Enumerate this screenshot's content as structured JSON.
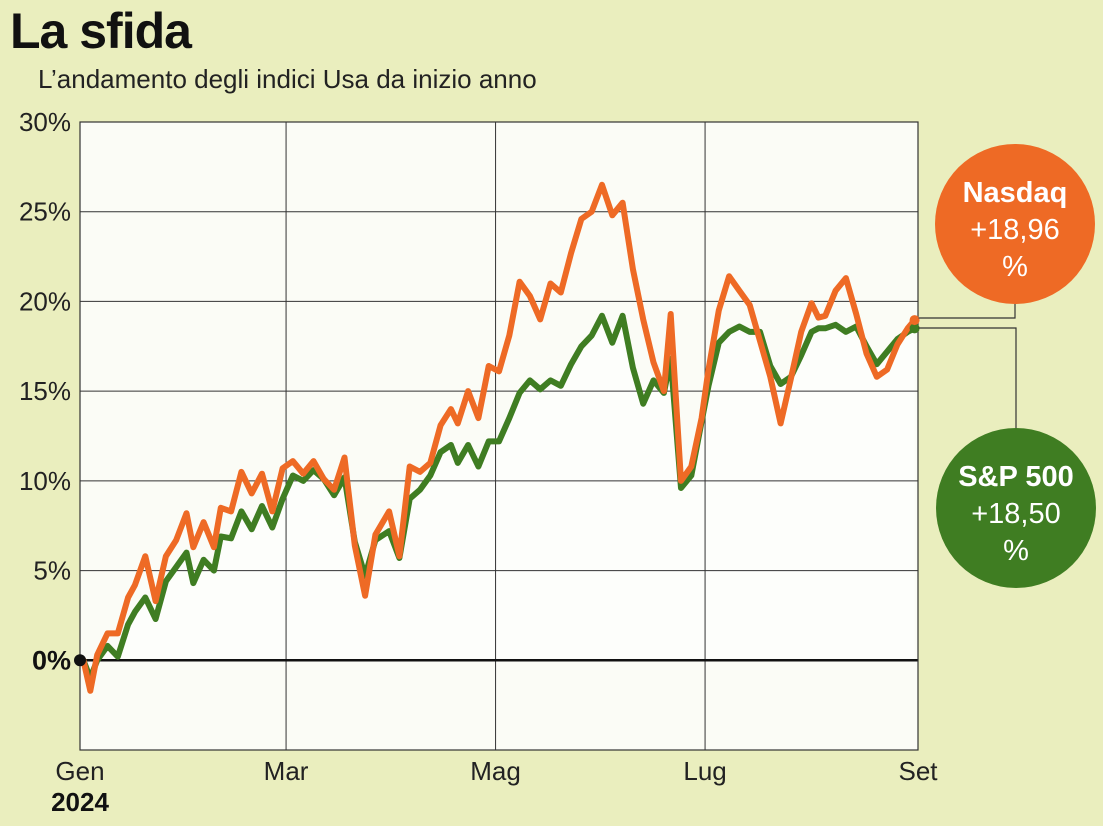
{
  "title": "La sfida",
  "subtitle": "L’andamento degli indici Usa da inizio anno",
  "colors": {
    "nasdaq": "#ee6a25",
    "sp500": "#3f7d22",
    "background": "#eaeebe",
    "plot_area": "#fbfcf6"
  },
  "chart_data": {
    "type": "line",
    "x_tick_labels": [
      "Gen",
      "Mar",
      "Mag",
      "Lug",
      "Set"
    ],
    "x_year_label": "2024",
    "y_tick_labels": [
      "30%",
      "25%",
      "20%",
      "15%",
      "10%",
      "5%",
      "0%"
    ],
    "ylim": [
      -5,
      30
    ],
    "grid": true,
    "series": [
      {
        "name": "Nasdaq",
        "final_label": "+18,96 %",
        "final_value": 18.96,
        "x": [
          "2024-01-02",
          "2024-01-04",
          "2024-01-06",
          "2024-01-09",
          "2024-01-12",
          "2024-01-15",
          "2024-01-17",
          "2024-01-20",
          "2024-01-23",
          "2024-01-26",
          "2024-01-29",
          "2024-02-01",
          "2024-02-03",
          "2024-02-06",
          "2024-02-09",
          "2024-02-11",
          "2024-02-14",
          "2024-02-17",
          "2024-02-20",
          "2024-02-23",
          "2024-02-26",
          "2024-02-29",
          "2024-03-03",
          "2024-03-06",
          "2024-03-09",
          "2024-03-12",
          "2024-03-15",
          "2024-03-18",
          "2024-03-21",
          "2024-03-24",
          "2024-03-27",
          "2024-03-31",
          "2024-04-03",
          "2024-04-06",
          "2024-04-09",
          "2024-04-12",
          "2024-04-15",
          "2024-04-18",
          "2024-04-20",
          "2024-04-23",
          "2024-04-26",
          "2024-04-29",
          "2024-05-02",
          "2024-05-05",
          "2024-05-08",
          "2024-05-11",
          "2024-05-14",
          "2024-05-17",
          "2024-05-20",
          "2024-05-23",
          "2024-05-26",
          "2024-05-29",
          "2024-06-01",
          "2024-06-04",
          "2024-06-07",
          "2024-06-10",
          "2024-06-13",
          "2024-06-16",
          "2024-06-19",
          "2024-06-21",
          "2024-06-24",
          "2024-06-27",
          "2024-06-30",
          "2024-07-02",
          "2024-07-05",
          "2024-07-08",
          "2024-07-11",
          "2024-07-14",
          "2024-07-17",
          "2024-07-20",
          "2024-07-23",
          "2024-07-26",
          "2024-07-29",
          "2024-08-01",
          "2024-08-03",
          "2024-08-05",
          "2024-08-08",
          "2024-08-11",
          "2024-08-14",
          "2024-08-17",
          "2024-08-20",
          "2024-08-23",
          "2024-08-26",
          "2024-08-29",
          "2024-08-31"
        ],
        "values": [
          0,
          -1.7,
          0.3,
          1.5,
          1.5,
          3.5,
          4.2,
          5.8,
          3.3,
          5.8,
          6.7,
          8.2,
          6.3,
          7.7,
          6.3,
          8.5,
          8.3,
          10.5,
          9.3,
          10.4,
          8.3,
          10.7,
          11.1,
          10.4,
          11.1,
          10.1,
          9.5,
          11.3,
          6.4,
          3.6,
          7.0,
          8.3,
          5.8,
          10.8,
          10.5,
          11.0,
          13.1,
          14.0,
          13.2,
          15.0,
          13.5,
          16.4,
          16.1,
          18.1,
          21.1,
          20.3,
          19.0,
          21.0,
          20.5,
          22.7,
          24.6,
          25.0,
          26.5,
          24.8,
          25.5,
          21.8,
          19.0,
          16.6,
          15.0,
          19.3,
          10.0,
          10.8,
          13.5,
          16.2,
          19.5,
          21.4,
          20.6,
          19.8,
          17.8,
          15.8,
          13.2,
          15.7,
          18.3,
          19.9,
          19.1,
          19.2,
          20.6,
          21.3,
          19.3,
          17.1,
          15.8,
          16.2,
          17.6,
          18.5,
          18.96
        ]
      },
      {
        "name": "S&P 500",
        "final_label": "+18,50 %",
        "final_value": 18.5,
        "x": [
          "2024-01-02",
          "2024-01-04",
          "2024-01-06",
          "2024-01-09",
          "2024-01-12",
          "2024-01-15",
          "2024-01-17",
          "2024-01-20",
          "2024-01-23",
          "2024-01-26",
          "2024-01-29",
          "2024-02-01",
          "2024-02-03",
          "2024-02-06",
          "2024-02-09",
          "2024-02-11",
          "2024-02-14",
          "2024-02-17",
          "2024-02-20",
          "2024-02-23",
          "2024-02-26",
          "2024-02-29",
          "2024-03-03",
          "2024-03-06",
          "2024-03-09",
          "2024-03-12",
          "2024-03-15",
          "2024-03-18",
          "2024-03-21",
          "2024-03-24",
          "2024-03-27",
          "2024-03-31",
          "2024-04-03",
          "2024-04-06",
          "2024-04-09",
          "2024-04-12",
          "2024-04-15",
          "2024-04-18",
          "2024-04-20",
          "2024-04-23",
          "2024-04-26",
          "2024-04-29",
          "2024-05-02",
          "2024-05-05",
          "2024-05-08",
          "2024-05-11",
          "2024-05-14",
          "2024-05-17",
          "2024-05-20",
          "2024-05-23",
          "2024-05-26",
          "2024-05-29",
          "2024-06-01",
          "2024-06-04",
          "2024-06-07",
          "2024-06-10",
          "2024-06-13",
          "2024-06-16",
          "2024-06-19",
          "2024-06-21",
          "2024-06-24",
          "2024-06-27",
          "2024-06-30",
          "2024-07-02",
          "2024-07-05",
          "2024-07-08",
          "2024-07-11",
          "2024-07-14",
          "2024-07-17",
          "2024-07-20",
          "2024-07-23",
          "2024-07-26",
          "2024-07-29",
          "2024-08-01",
          "2024-08-03",
          "2024-08-05",
          "2024-08-08",
          "2024-08-11",
          "2024-08-14",
          "2024-08-17",
          "2024-08-20",
          "2024-08-23",
          "2024-08-26",
          "2024-08-29",
          "2024-08-31"
        ],
        "values": [
          0,
          -1.0,
          0.0,
          0.8,
          0.2,
          2.0,
          2.7,
          3.5,
          2.3,
          4.4,
          5.2,
          6.0,
          4.3,
          5.6,
          5.0,
          6.9,
          6.8,
          8.3,
          7.3,
          8.6,
          7.4,
          9.0,
          10.3,
          10.0,
          10.6,
          10.1,
          9.2,
          10.2,
          6.6,
          4.7,
          6.7,
          7.2,
          5.7,
          9.0,
          9.5,
          10.3,
          11.6,
          12.0,
          11.0,
          12.0,
          10.8,
          12.2,
          12.2,
          13.5,
          14.9,
          15.6,
          15.1,
          15.6,
          15.3,
          16.5,
          17.5,
          18.1,
          19.2,
          17.7,
          19.2,
          16.3,
          14.3,
          15.6,
          14.9,
          16.8,
          9.6,
          10.3,
          13.3,
          15.3,
          17.7,
          18.3,
          18.6,
          18.3,
          18.3,
          16.4,
          15.4,
          15.8,
          17.0,
          18.3,
          18.5,
          18.5,
          18.7,
          18.3,
          18.6,
          17.5,
          16.5,
          17.2,
          17.9,
          18.3,
          18.5
        ]
      }
    ]
  }
}
